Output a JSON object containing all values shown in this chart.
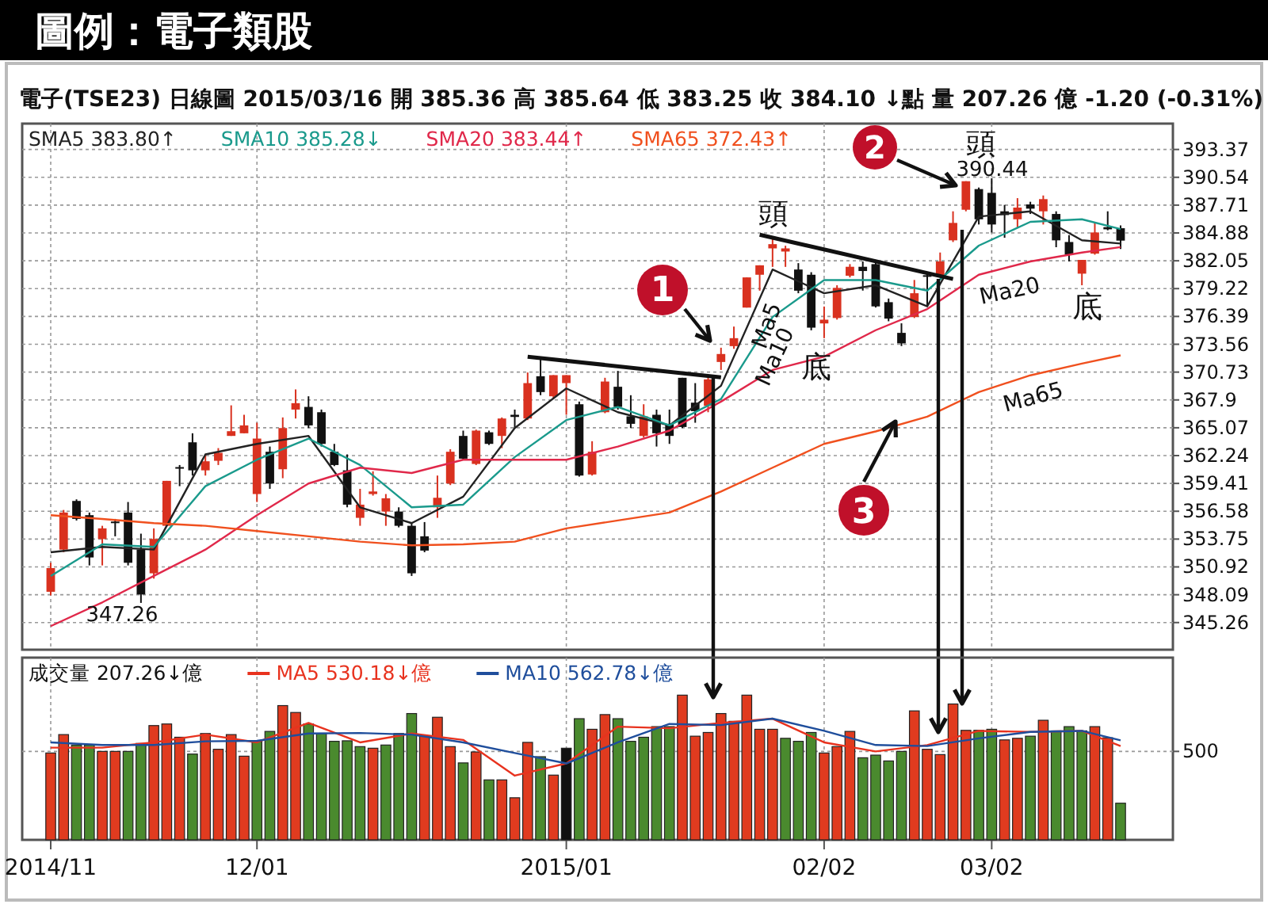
{
  "chart_data": [
    {
      "type": "candlestick",
      "title": "圖例：電子類股",
      "subtitle": "電子(TSE23) 日線圖 2015/03/16 開 385.36 高 385.64 低 383.25 收 384.10 ↓點 量 207.26 億 -1.20 (-0.31%)",
      "categories": [
        null,
        null,
        null,
        null,
        null,
        null,
        null,
        null,
        null,
        null,
        null,
        null,
        null,
        null,
        null,
        null,
        null,
        null,
        null,
        null,
        null,
        null,
        null,
        null,
        null,
        null,
        null,
        null,
        null,
        null,
        null,
        null,
        null,
        null,
        null,
        null,
        null,
        null,
        null,
        null,
        null,
        null,
        null,
        null,
        null,
        null,
        null,
        null,
        null,
        null,
        null,
        null,
        null,
        null,
        null,
        null,
        null,
        null,
        null,
        null,
        null,
        null,
        null,
        null,
        null,
        null,
        null,
        null,
        null,
        null,
        null,
        null,
        null,
        null,
        null,
        null,
        null,
        null,
        null,
        null,
        null,
        null,
        null,
        null
      ],
      "ohlc": [
        [
          348.39,
          351.34,
          348.01,
          350.8
        ],
        [
          352.68,
          356.71,
          352.41,
          356.45
        ],
        [
          357.63,
          357.79,
          355.64,
          355.8
        ],
        [
          356.18,
          356.45,
          351.07,
          351.88
        ],
        [
          353.76,
          355.1,
          351.07,
          354.84
        ],
        [
          355.53,
          355.8,
          354.03,
          355.37
        ],
        [
          356.45,
          357.52,
          351.07,
          351.34
        ],
        [
          352.68,
          354.3,
          347.26,
          348.12
        ],
        [
          350.27,
          354.84,
          349.73,
          353.76
        ],
        [
          355.1,
          359.67,
          355.1,
          359.67
        ],
        [
          361.07,
          361.28,
          359.13,
          360.91
        ],
        [
          363.59,
          364.51,
          360.21,
          360.74
        ],
        [
          360.74,
          362.36,
          360.21,
          361.66
        ],
        [
          361.71,
          363.0,
          361.28,
          362.52
        ],
        [
          364.24,
          367.35,
          364.24,
          364.72
        ],
        [
          364.51,
          366.39,
          364.51,
          365.31
        ],
        [
          358.33,
          365.58,
          357.52,
          363.97
        ],
        [
          362.63,
          363.16,
          358.86,
          359.4
        ],
        [
          360.85,
          366.12,
          359.94,
          365.04
        ],
        [
          366.92,
          368.97,
          366.01,
          367.57
        ],
        [
          367.19,
          368.27,
          365.04,
          365.31
        ],
        [
          366.65,
          366.92,
          363.16,
          363.43
        ],
        [
          362.63,
          363.43,
          361.17,
          361.28
        ],
        [
          360.74,
          362.36,
          356.98,
          357.25
        ],
        [
          355.91,
          358.86,
          355.1,
          357.25
        ],
        [
          358.33,
          360.64,
          358.17,
          358.59
        ],
        [
          356.55,
          358.33,
          355.1,
          357.9
        ],
        [
          356.55,
          356.98,
          354.94,
          355.1
        ],
        [
          355.1,
          355.48,
          350.0,
          350.27
        ],
        [
          354.03,
          355.48,
          352.41,
          352.58
        ],
        [
          356.98,
          360.21,
          355.91,
          357.95
        ],
        [
          359.4,
          362.89,
          359.24,
          362.63
        ],
        [
          364.24,
          364.78,
          361.82,
          361.93
        ],
        [
          361.39,
          364.88,
          361.28,
          364.78
        ],
        [
          364.61,
          364.78,
          363.32,
          363.43
        ],
        [
          364.24,
          366.12,
          363.0,
          366.01
        ],
        [
          366.39,
          366.92,
          365.04,
          366.17
        ],
        [
          366.01,
          370.69,
          365.85,
          369.61
        ],
        [
          370.31,
          372.03,
          368.38,
          368.7
        ],
        [
          368.27,
          370.42,
          368.0,
          370.42
        ],
        [
          369.61,
          370.42,
          366.39,
          370.42
        ],
        [
          367.46,
          367.73,
          360.1,
          360.21
        ],
        [
          360.32,
          363.7,
          360.21,
          362.63
        ],
        [
          366.65,
          370.15,
          366.55,
          369.77
        ],
        [
          369.24,
          370.85,
          366.92,
          367.19
        ],
        [
          366.23,
          368.38,
          365.04,
          365.47
        ],
        [
          364.24,
          367.46,
          364.08,
          366.23
        ],
        [
          366.39,
          366.92,
          363.16,
          364.51
        ],
        [
          365.47,
          366.92,
          363.43,
          364.24
        ],
        [
          370.15,
          370.15,
          365.04,
          365.15
        ],
        [
          367.62,
          369.61,
          365.58,
          366.76
        ],
        [
          367.3,
          370.15,
          366.65,
          369.99
        ],
        [
          371.76,
          373.21,
          370.95,
          372.57
        ],
        [
          373.37,
          375.36,
          373.1,
          374.18
        ],
        [
          377.29,
          380.36,
          377.29,
          380.36
        ],
        [
          380.63,
          381.59,
          379.01,
          381.59
        ],
        [
          383.31,
          384.39,
          381.43,
          383.74
        ],
        [
          382.99,
          383.58,
          381.43,
          383.31
        ],
        [
          381.16,
          381.81,
          378.75,
          379.01
        ],
        [
          380.63,
          380.89,
          374.98,
          375.25
        ],
        [
          375.68,
          377.4,
          374.18,
          376.06
        ],
        [
          376.23,
          379.56,
          376.07,
          379.29
        ],
        [
          380.53,
          381.71,
          380.36,
          381.44
        ],
        [
          381.44,
          381.98,
          379.02,
          381.01
        ],
        [
          381.71,
          381.98,
          377.3,
          377.41
        ],
        [
          377.84,
          378.21,
          375.9,
          376.17
        ],
        [
          374.72,
          375.69,
          373.38,
          373.65
        ],
        [
          376.33,
          380.1,
          376.23,
          378.75
        ],
        [
          380.58,
          380.74,
          377.41,
          380.42
        ],
        [
          380.53,
          382.89,
          380.36,
          381.98
        ],
        [
          384.13,
          387.08,
          383.96,
          385.9
        ],
        [
          387.24,
          390.14,
          387.08,
          390.14
        ],
        [
          389.34,
          389.5,
          385.74,
          386.27
        ],
        [
          388.96,
          390.44,
          384.93,
          385.74
        ],
        [
          387.08,
          387.73,
          384.39,
          386.7
        ],
        [
          386.27,
          388.42,
          385.36,
          387.46
        ],
        [
          387.78,
          388.05,
          386.81,
          387.35
        ],
        [
          387.08,
          388.69,
          385.74,
          388.32
        ],
        [
          386.81,
          387.08,
          383.43,
          384.13
        ],
        [
          383.96,
          384.66,
          381.98,
          382.67
        ],
        [
          380.74,
          382.14,
          379.56,
          382.14
        ],
        [
          382.78,
          386.01,
          382.67,
          384.93
        ],
        [
          385.47,
          387.08,
          385.15,
          385.25
        ],
        [
          385.36,
          385.64,
          383.25,
          384.1
        ]
      ],
      "colors": [
        "#d9311f",
        "#d9311f",
        "#111111",
        "#111111",
        "#d9311f",
        "#111111",
        "#111111",
        "#111111",
        "#d9311f",
        "#d9311f",
        "#111111",
        "#111111",
        "#d9311f",
        "#d9311f",
        "#d9311f",
        "#d9311f",
        "#d9311f",
        "#111111",
        "#d9311f",
        "#d9311f",
        "#111111",
        "#111111",
        "#111111",
        "#111111",
        "#d9311f",
        "#d9311f",
        "#d9311f",
        "#111111",
        "#111111",
        "#111111",
        "#d9311f",
        "#d9311f",
        "#111111",
        "#d9311f",
        "#111111",
        "#d9311f",
        "#111111",
        "#d9311f",
        "#111111",
        "#d9311f",
        "#d9311f",
        "#111111",
        "#d9311f",
        "#d9311f",
        "#111111",
        "#111111",
        "#d9311f",
        "#111111",
        "#111111",
        "#111111",
        "#111111",
        "#d9311f",
        "#d9311f",
        "#d9311f",
        "#d9311f",
        "#d9311f",
        "#d9311f",
        "#d9311f",
        "#111111",
        "#111111",
        "#d9311f",
        "#d9311f",
        "#d9311f",
        "#111111",
        "#111111",
        "#111111",
        "#111111",
        "#d9311f",
        "#111111",
        "#d9311f",
        "#d9311f",
        "#d9311f",
        "#111111",
        "#111111",
        "#111111",
        "#d9311f",
        "#111111",
        "#d9311f",
        "#111111",
        "#111111",
        "#d9311f",
        "#d9311f",
        "#111111",
        "#111111"
      ],
      "series": [
        {
          "name": "SMA5 383.80↑",
          "type": "line",
          "color": "#222222",
          "values": [
            352.41,
            null,
            null,
            null,
            352.95,
            null,
            null,
            null,
            352.68,
            null,
            null,
            null,
            362.36,
            null,
            null,
            null,
            363.43,
            null,
            null,
            null,
            364.24,
            null,
            null,
            null,
            356.98,
            null,
            null,
            null,
            355.37,
            null,
            null,
            null,
            358.06,
            null,
            null,
            null,
            365.04,
            null,
            null,
            null,
            369.07,
            null,
            null,
            null,
            366.65,
            null,
            null,
            null,
            365.31,
            null,
            null,
            null,
            369.34,
            null,
            null,
            null,
            381.16,
            null,
            null,
            null,
            378.75,
            null,
            null,
            null,
            379.56,
            null,
            null,
            null,
            377.41,
            null,
            null,
            null,
            386.54,
            null,
            null,
            null,
            387.08,
            null,
            null,
            null,
            384.13,
            null,
            null,
            383.8
          ]
        },
        {
          "name": "SMA10 385.28↓",
          "type": "line",
          "color": "#1a9a8c",
          "values": [
            350.0,
            null,
            null,
            null,
            353.22,
            null,
            null,
            null,
            352.95,
            null,
            null,
            null,
            359.13,
            null,
            null,
            null,
            361.82,
            null,
            null,
            null,
            363.97,
            null,
            null,
            null,
            361.28,
            null,
            null,
            null,
            356.98,
            null,
            null,
            null,
            357.25,
            null,
            null,
            null,
            362.09,
            null,
            null,
            null,
            365.85,
            null,
            null,
            null,
            367.19,
            null,
            null,
            null,
            365.31,
            null,
            null,
            null,
            368.0,
            null,
            null,
            null,
            376.33,
            null,
            null,
            null,
            380.09,
            null,
            null,
            null,
            380.09,
            null,
            null,
            null,
            379.02,
            null,
            null,
            null,
            383.59,
            null,
            null,
            null,
            386.01,
            null,
            null,
            null,
            386.27,
            null,
            null,
            385.28
          ]
        },
        {
          "name": "SMA20 383.44↑",
          "type": "line",
          "color": "#e0284a",
          "values": [
            344.9,
            null,
            null,
            null,
            347.31,
            null,
            null,
            null,
            350.0,
            null,
            null,
            null,
            352.68,
            null,
            null,
            null,
            356.18,
            null,
            null,
            null,
            359.4,
            null,
            null,
            null,
            361.01,
            null,
            null,
            null,
            360.47,
            null,
            null,
            null,
            361.82,
            null,
            null,
            null,
            361.82,
            null,
            null,
            null,
            361.82,
            null,
            null,
            null,
            363.16,
            null,
            null,
            null,
            364.78,
            null,
            null,
            null,
            367.73,
            null,
            null,
            null,
            370.95,
            null,
            null,
            null,
            372.3,
            null,
            null,
            null,
            374.99,
            null,
            null,
            null,
            377.14,
            null,
            null,
            null,
            380.63,
            null,
            null,
            null,
            381.98,
            null,
            null,
            null,
            382.89,
            null,
            null,
            383.44
          ]
        },
        {
          "type": "line",
          "color": "#111111",
          "values": [
            null,
            null,
            null,
            null,
            null,
            null,
            null,
            null,
            null,
            null,
            null,
            null,
            null,
            null,
            null,
            null,
            null,
            null,
            null,
            null,
            null,
            null,
            null,
            null,
            null,
            null,
            null,
            null,
            null,
            null,
            null,
            null,
            null,
            null,
            null,
            null,
            null,
            372.3,
            null,
            null,
            null,
            null,
            null,
            null,
            null,
            null,
            null,
            null,
            null,
            null,
            null,
            null,
            370.2,
            null,
            null,
            null,
            null,
            null,
            null,
            null,
            null,
            null,
            null,
            null,
            null,
            null,
            null,
            null,
            null,
            null,
            null,
            null,
            null,
            null,
            null,
            null,
            null,
            null,
            null,
            null,
            null,
            null,
            null,
            null
          ]
        },
        {
          "type": "line",
          "color": "#111111",
          "values": [
            null,
            null,
            null,
            null,
            null,
            null,
            null,
            null,
            null,
            null,
            null,
            null,
            null,
            null,
            null,
            null,
            null,
            null,
            null,
            null,
            null,
            null,
            null,
            null,
            null,
            null,
            null,
            null,
            null,
            null,
            null,
            null,
            null,
            null,
            null,
            null,
            null,
            null,
            null,
            null,
            null,
            null,
            null,
            null,
            null,
            null,
            null,
            null,
            null,
            null,
            null,
            null,
            null,
            null,
            null,
            384.7,
            null,
            null,
            null,
            null,
            null,
            null,
            null,
            null,
            null,
            null,
            null,
            null,
            null,
            null,
            380.2,
            null,
            null,
            null,
            null,
            null,
            null,
            null,
            null,
            null,
            null,
            null,
            null,
            null
          ]
        },
        {
          "name": "SMA65 372.43↑",
          "type": "line",
          "color": "#f0501e",
          "values": [
            356.18,
            null,
            null,
            null,
            355.8,
            null,
            null,
            null,
            355.37,
            null,
            null,
            null,
            355.1,
            null,
            null,
            null,
            354.57,
            null,
            null,
            null,
            354.03,
            null,
            null,
            null,
            353.49,
            null,
            null,
            null,
            353.11,
            null,
            null,
            null,
            353.22,
            null,
            null,
            null,
            353.49,
            null,
            null,
            null,
            354.84,
            null,
            null,
            null,
            355.64,
            null,
            null,
            null,
            356.45,
            null,
            null,
            null,
            358.59,
            null,
            null,
            null,
            361.01,
            null,
            null,
            null,
            363.43,
            null,
            null,
            null,
            364.7,
            null,
            null,
            null,
            366.2,
            null,
            null,
            null,
            368.7,
            null,
            null,
            null,
            370.4,
            null,
            null,
            null,
            371.6,
            null,
            null,
            372.43
          ]
        }
      ],
      "ylim": [
        342.5,
        396.0
      ],
      "yticks": [
        345.26,
        348.09,
        350.92,
        353.75,
        356.58,
        359.41,
        362.24,
        365.07,
        367.9,
        370.73,
        373.56,
        376.39,
        379.22,
        382.05,
        384.88,
        387.71,
        390.54,
        393.37
      ],
      "grid": true,
      "legend": "top left",
      "tick_labels": "y",
      "annotations": [
        "347.26",
        "390.44",
        "頭",
        "頭",
        "底",
        "底",
        "Ma5",
        "Ma10",
        "Ma20",
        "Ma65",
        "1",
        "2",
        "3"
      ]
    },
    {
      "type": "bar",
      "categories": [
        "2014/11",
        null,
        null,
        null,
        null,
        null,
        null,
        null,
        null,
        null,
        null,
        null,
        null,
        null,
        null,
        null,
        "12/01",
        null,
        null,
        null,
        null,
        null,
        null,
        null,
        null,
        null,
        null,
        null,
        null,
        null,
        null,
        null,
        null,
        null,
        null,
        null,
        null,
        null,
        null,
        null,
        "2015/01",
        null,
        null,
        null,
        null,
        null,
        null,
        null,
        null,
        null,
        null,
        null,
        null,
        null,
        null,
        null,
        null,
        null,
        null,
        null,
        "02/02",
        null,
        null,
        null,
        null,
        null,
        null,
        null,
        null,
        null,
        null,
        null,
        null,
        "03/02",
        null,
        null,
        null,
        null,
        null,
        null,
        null,
        null,
        null,
        null
      ],
      "series": [
        {
          "name": "成交量 207.26↓億",
          "type": "bar",
          "values": [
            491,
            595,
            536,
            536,
            500,
            500,
            500,
            545,
            646,
            655,
            580,
            485,
            601,
            512,
            595,
            473,
            557,
            613,
            759,
            720,
            655,
            601,
            557,
            560,
            527,
            518,
            536,
            601,
            714,
            586,
            693,
            527,
            435,
            497,
            339,
            339,
            238,
            551,
            470,
            366,
            518,
            685,
            625,
            708,
            685,
            557,
            580,
            640,
            640,
            818,
            586,
            607,
            714,
            670,
            818,
            625,
            625,
            574,
            557,
            607,
            491,
            527,
            613,
            464,
            479,
            446,
            500,
            729,
            512,
            482,
            768,
            619,
            619,
            625,
            565,
            574,
            586,
            676,
            616,
            640,
            616,
            640,
            577,
            207.26
          ],
          "colors": [
            "#e03b1f",
            "#e03b1f",
            "#4a8a2e",
            "#4a8a2e",
            "#e03b1f",
            "#e03b1f",
            "#4a8a2e",
            "#4a8a2e",
            "#e03b1f",
            "#e03b1f",
            "#e03b1f",
            "#4a8a2e",
            "#e03b1f",
            "#e03b1f",
            "#e03b1f",
            "#e03b1f",
            "#4a8a2e",
            "#4a8a2e",
            "#e03b1f",
            "#e03b1f",
            "#4a8a2e",
            "#4a8a2e",
            "#4a8a2e",
            "#4a8a2e",
            "#4a8a2e",
            "#e03b1f",
            "#4a8a2e",
            "#4a8a2e",
            "#4a8a2e",
            "#e03b1f",
            "#e03b1f",
            "#e03b1f",
            "#4a8a2e",
            "#e03b1f",
            "#4a8a2e",
            "#e03b1f",
            "#e03b1f",
            "#e03b1f",
            "#4a8a2e",
            "#e03b1f",
            "#111111",
            "#4a8a2e",
            "#e03b1f",
            "#e03b1f",
            "#4a8a2e",
            "#4a8a2e",
            "#4a8a2e",
            "#4a8a2e",
            "#4a8a2e",
            "#e03b1f",
            "#e03b1f",
            "#e03b1f",
            "#e03b1f",
            "#e03b1f",
            "#e03b1f",
            "#e03b1f",
            "#e03b1f",
            "#4a8a2e",
            "#4a8a2e",
            "#4a8a2e",
            "#e03b1f",
            "#e03b1f",
            "#e03b1f",
            "#4a8a2e",
            "#4a8a2e",
            "#4a8a2e",
            "#4a8a2e",
            "#e03b1f",
            "#e03b1f",
            "#e03b1f",
            "#e03b1f",
            "#e03b1f",
            "#4a8a2e",
            "#4a8a2e",
            "#e03b1f",
            "#e03b1f",
            "#4a8a2e",
            "#e03b1f",
            "#4a8a2e",
            "#4a8a2e",
            "#4a8a2e",
            "#e03b1f",
            "#e03b1f",
            "#4a8a2e"
          ]
        },
        {
          "name": "MA5 530.18↓億",
          "type": "line",
          "color": "#e8321e",
          "values": [
            521,
            null,
            null,
            null,
            521,
            null,
            null,
            null,
            551,
            null,
            null,
            null,
            595,
            null,
            null,
            null,
            551,
            null,
            null,
            null,
            661,
            null,
            null,
            null,
            551,
            null,
            null,
            null,
            601,
            null,
            null,
            null,
            565,
            null,
            null,
            null,
            363,
            null,
            null,
            null,
            432,
            null,
            null,
            null,
            640,
            null,
            null,
            null,
            631,
            null,
            null,
            null,
            661,
            null,
            null,
            null,
            685,
            null,
            null,
            null,
            551,
            null,
            null,
            null,
            500,
            null,
            null,
            null,
            536,
            null,
            null,
            null,
            616,
            null,
            null,
            null,
            610,
            null,
            null,
            null,
            616,
            null,
            null,
            530.18
          ]
        },
        {
          "name": "MA10 562.78↓億",
          "type": "line",
          "color": "#1f4e9c",
          "values": [
            551,
            null,
            null,
            null,
            536,
            null,
            null,
            null,
            536,
            null,
            null,
            null,
            557,
            null,
            null,
            null,
            560,
            null,
            null,
            null,
            601,
            null,
            null,
            null,
            604,
            null,
            null,
            null,
            595,
            null,
            null,
            null,
            551,
            null,
            null,
            null,
            491,
            null,
            null,
            null,
            432,
            null,
            null,
            null,
            551,
            null,
            null,
            null,
            655,
            null,
            null,
            null,
            649,
            null,
            null,
            null,
            685,
            null,
            null,
            null,
            616,
            null,
            null,
            null,
            536,
            null,
            null,
            null,
            530,
            null,
            null,
            null,
            574,
            null,
            null,
            null,
            610,
            null,
            null,
            null,
            616,
            null,
            null,
            562.78
          ]
        }
      ],
      "ylim": [
        0,
        1030
      ],
      "yticks": [
        500
      ],
      "grid": true,
      "legend": "top left"
    }
  ]
}
